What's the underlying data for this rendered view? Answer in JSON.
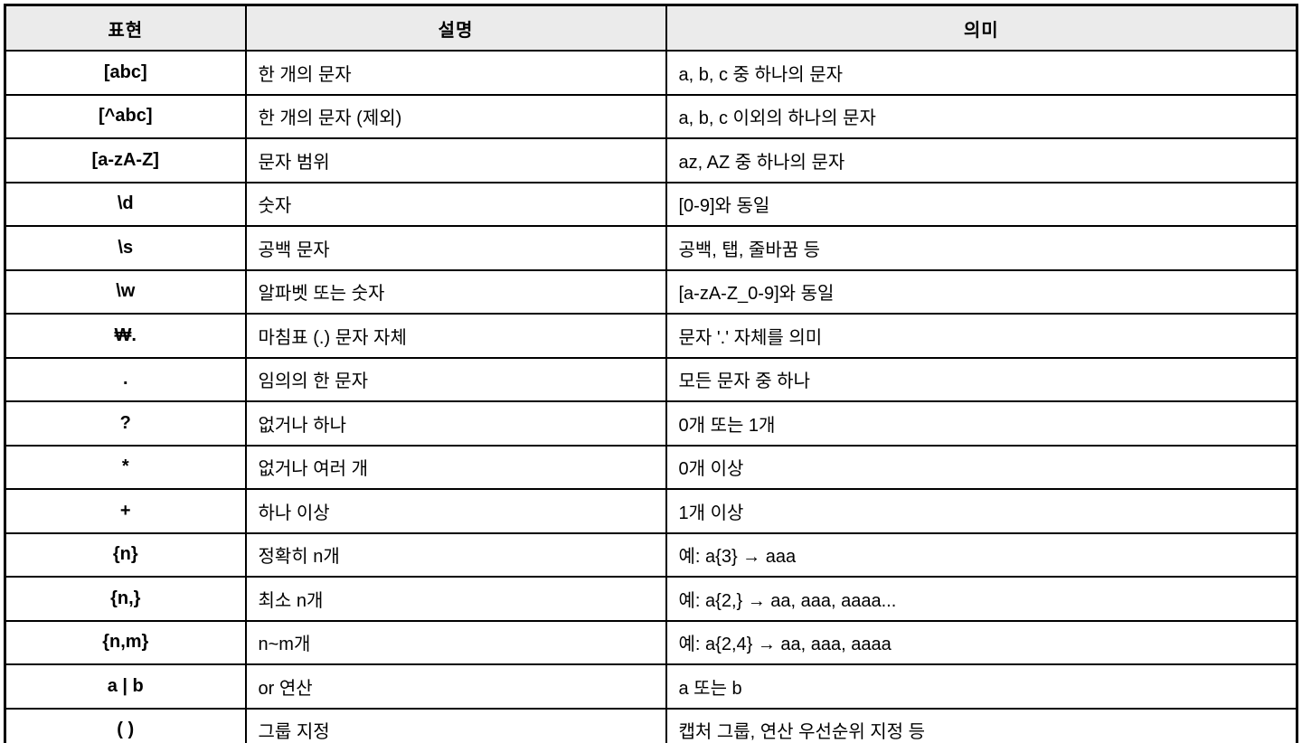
{
  "table": {
    "columns": [
      {
        "label": "표현"
      },
      {
        "label": "설명"
      },
      {
        "label": "의미"
      }
    ],
    "rows": [
      {
        "expr": "[abc]",
        "desc": "한 개의 문자",
        "meaning": "a, b, c 중 하나의 문자"
      },
      {
        "expr": "[^abc]",
        "desc": "한 개의 문자 (제외)",
        "meaning": "a, b, c 이외의 하나의 문자"
      },
      {
        "expr": "[a-zA-Z]",
        "desc": "문자 범위",
        "meaning": "az, AZ 중 하나의 문자"
      },
      {
        "expr": "\\d",
        "desc": "숫자",
        "meaning": "[0-9]와 동일"
      },
      {
        "expr": "\\s",
        "desc": "공백 문자",
        "meaning": "공백, 탭, 줄바꿈 등"
      },
      {
        "expr": "\\w",
        "desc": "알파벳 또는 숫자",
        "meaning": "[a-zA-Z_0-9]와 동일"
      },
      {
        "expr": "₩.",
        "desc": "마침표 (.) 문자 자체",
        "meaning": "문자 '.' 자체를 의미"
      },
      {
        "expr": ".",
        "desc": "임의의 한 문자",
        "meaning": "모든 문자 중 하나"
      },
      {
        "expr": "?",
        "desc": "없거나 하나",
        "meaning": "0개 또는 1개"
      },
      {
        "expr": "*",
        "desc": "없거나 여러 개",
        "meaning": "0개 이상"
      },
      {
        "expr": "+",
        "desc": "하나 이상",
        "meaning": "1개 이상"
      },
      {
        "expr": "{n}",
        "desc": "정확히 n개",
        "meaning": "예: a{3} → aaa"
      },
      {
        "expr": "{n,}",
        "desc": "최소 n개",
        "meaning": "예: a{2,} → aa, aaa, aaaa..."
      },
      {
        "expr": "{n,m}",
        "desc": "n~m개",
        "meaning": "예: a{2,4} → aa, aaa, aaaa"
      },
      {
        "expr": "a | b",
        "desc": "or 연산",
        "meaning": "a 또는 b"
      },
      {
        "expr": "( )",
        "desc": "그룹 지정",
        "meaning": "캡처 그룹, 연산 우선순위 지정 등"
      }
    ],
    "colors": {
      "header_bg": "#ebebeb",
      "border": "#000000",
      "text": "#000000"
    }
  }
}
